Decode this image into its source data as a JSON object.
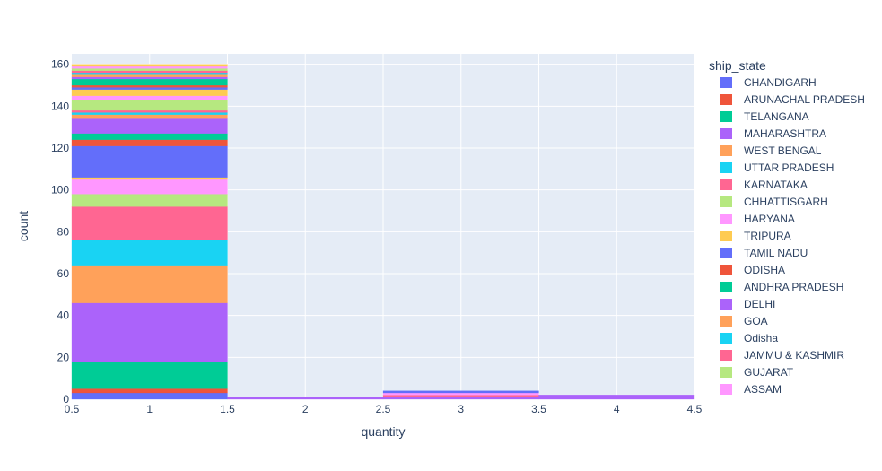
{
  "chart_data": {
    "type": "bar",
    "barmode": "stack",
    "xlabel": "quantity",
    "ylabel": "count",
    "xlim": [
      0.5,
      4.5
    ],
    "ylim": [
      0,
      165
    ],
    "x_ticks": [
      "0.5",
      "1",
      "1.5",
      "2",
      "2.5",
      "3",
      "3.5",
      "4",
      "4.5"
    ],
    "y_ticks": [
      "0",
      "20",
      "40",
      "60",
      "80",
      "100",
      "120",
      "140",
      "160"
    ],
    "legend_title": "ship_state",
    "legend_placement": "right",
    "grid": true,
    "bins": [
      {
        "x0": 0.5,
        "x1": 1.5
      },
      {
        "x0": 1.5,
        "x1": 2.5
      },
      {
        "x0": 2.5,
        "x1": 3.5
      },
      {
        "x0": 3.5,
        "x1": 4.5
      }
    ],
    "series": [
      {
        "name": "CHANDIGARH",
        "color": "#636efa",
        "values": [
          3,
          0,
          0,
          0
        ]
      },
      {
        "name": "ARUNACHAL PRADESH",
        "color": "#EF553B",
        "values": [
          2,
          0,
          0,
          0
        ]
      },
      {
        "name": "TELANGANA",
        "color": "#00cc96",
        "values": [
          13,
          0,
          0,
          0
        ]
      },
      {
        "name": "MAHARASHTRA",
        "color": "#ab63fa",
        "values": [
          28,
          1,
          1,
          2
        ]
      },
      {
        "name": "WEST BENGAL",
        "color": "#FFA15A",
        "values": [
          18,
          0,
          0,
          0
        ]
      },
      {
        "name": "UTTAR PRADESH",
        "color": "#19d3f3",
        "values": [
          12,
          0,
          0,
          0
        ]
      },
      {
        "name": "KARNATAKA",
        "color": "#FF6692",
        "values": [
          16,
          0,
          1,
          0
        ]
      },
      {
        "name": "CHHATTISGARH",
        "color": "#B6E880",
        "values": [
          6,
          0,
          0,
          0
        ]
      },
      {
        "name": "HARYANA",
        "color": "#FF97FF",
        "values": [
          7,
          0,
          1,
          0
        ]
      },
      {
        "name": "TRIPURA",
        "color": "#FECB52",
        "values": [
          1,
          0,
          0,
          0
        ]
      },
      {
        "name": "TAMIL NADU",
        "color": "#636efa",
        "values": [
          15,
          0,
          1,
          0
        ]
      },
      {
        "name": "ODISHA",
        "color": "#EF553B",
        "values": [
          3,
          0,
          0,
          0
        ]
      },
      {
        "name": "ANDHRA PRADESH",
        "color": "#00cc96",
        "values": [
          3,
          0,
          0,
          0
        ]
      },
      {
        "name": "DELHI",
        "color": "#ab63fa",
        "values": [
          7,
          0,
          0,
          0
        ]
      },
      {
        "name": "GOA",
        "color": "#FFA15A",
        "values": [
          2,
          0,
          0,
          0
        ]
      },
      {
        "name": "Odisha",
        "color": "#19d3f3",
        "values": [
          1,
          0,
          0,
          0
        ]
      },
      {
        "name": "JAMMU & KASHMIR",
        "color": "#FF6692",
        "values": [
          1,
          0,
          0,
          0
        ]
      },
      {
        "name": "GUJARAT",
        "color": "#B6E880",
        "values": [
          5,
          0,
          0,
          0
        ]
      },
      {
        "name": "ASSAM",
        "color": "#FF97FF",
        "values": [
          2,
          0,
          0,
          0
        ]
      }
    ],
    "extra_segments_bin1": [
      {
        "color": "#FECB52",
        "value": 3
      },
      {
        "color": "#636efa",
        "value": 1
      },
      {
        "color": "#EF553B",
        "value": 1
      },
      {
        "color": "#00cc96",
        "value": 3
      },
      {
        "color": "#ab63fa",
        "value": 1
      },
      {
        "color": "#FFA15A",
        "value": 1
      },
      {
        "color": "#19d3f3",
        "value": 1
      },
      {
        "color": "#FF6692",
        "value": 1
      },
      {
        "color": "#B6E880",
        "value": 1
      },
      {
        "color": "#FF97FF",
        "value": 1
      },
      {
        "color": "#FECB52",
        "value": 1
      }
    ]
  }
}
